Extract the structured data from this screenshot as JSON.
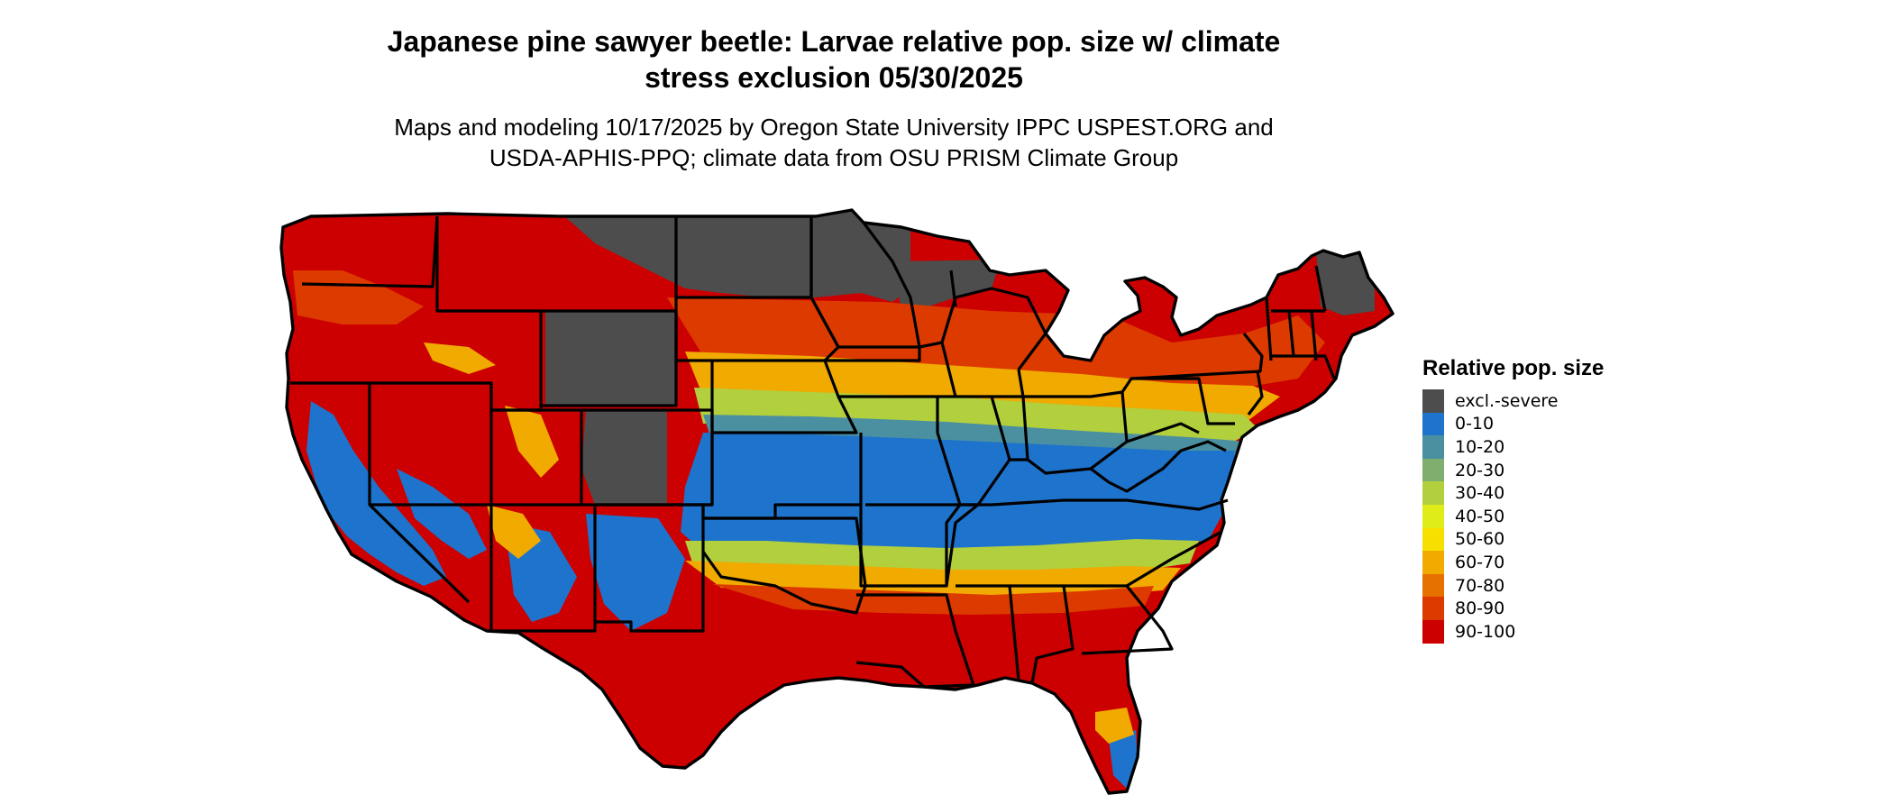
{
  "title": {
    "line1": "Japanese pine sawyer beetle: Larvae relative pop. size w/ climate",
    "line2": "stress exclusion 05/30/2025"
  },
  "subtitle": {
    "line1": "Maps and modeling 10/17/2025 by Oregon State University IPPC USPEST.ORG and",
    "line2": "USDA-APHIS-PPQ; climate data from OSU PRISM Climate Group"
  },
  "legend": {
    "title": "Relative pop. size",
    "items": [
      {
        "label": "excl.-severe",
        "color": "#4d4d4d"
      },
      {
        "label": "0-10",
        "color": "#1e73cc"
      },
      {
        "label": "10-20",
        "color": "#4a90a0"
      },
      {
        "label": "20-30",
        "color": "#7fae6e"
      },
      {
        "label": "30-40",
        "color": "#b2cf3e"
      },
      {
        "label": "40-50",
        "color": "#e0ec18"
      },
      {
        "label": "50-60",
        "color": "#f7e000"
      },
      {
        "label": "60-70",
        "color": "#f0aa00"
      },
      {
        "label": "70-80",
        "color": "#e67000"
      },
      {
        "label": "80-90",
        "color": "#dd3a00"
      },
      {
        "label": "90-100",
        "color": "#cc0000"
      }
    ]
  }
}
